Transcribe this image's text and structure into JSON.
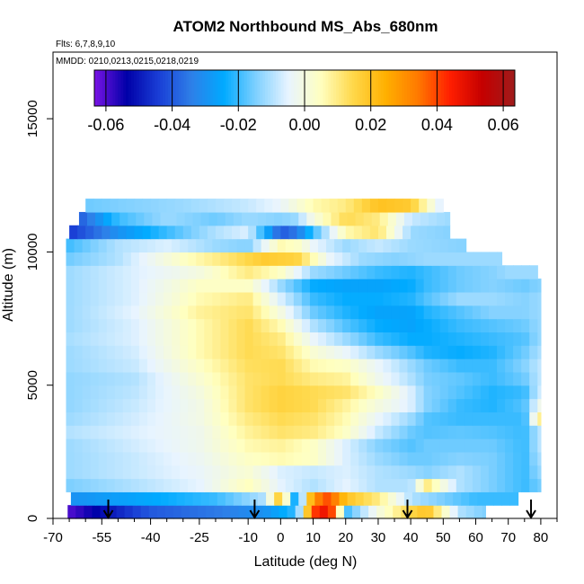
{
  "chart_data": {
    "type": "heatmap",
    "title": "ATOM2 Northbound MS_Abs_680nm",
    "flights_note": "Flts: 6,7,8,9,10",
    "dates_note": "MMDD: 0210,0213,0215,0218,0219",
    "xlabel": "Latitude (deg N)",
    "ylabel": "Altitude (m)",
    "xlim": [
      -70,
      85
    ],
    "ylim": [
      0,
      17500
    ],
    "x_ticks": [
      -70,
      -55,
      -40,
      -25,
      -10,
      0,
      10,
      20,
      30,
      40,
      50,
      60,
      70,
      80
    ],
    "x_tick_labels": [
      "-70",
      "-55",
      "-40",
      "-25",
      "-10",
      "0",
      "10",
      "20",
      "30",
      "40",
      "50",
      "60",
      "70",
      "80"
    ],
    "x_minor_ticks": [
      -65,
      -60,
      -50,
      -45,
      -35,
      -30,
      -20,
      -15,
      -5,
      5,
      15,
      25,
      35,
      45,
      55,
      65,
      75,
      85
    ],
    "y_ticks": [
      0,
      5000,
      10000,
      15000
    ],
    "y_tick_labels": [
      "0",
      "5000",
      "10000",
      "15000"
    ],
    "colorbar": {
      "range": [
        -0.0635,
        0.0635
      ],
      "ticks": [
        -0.06,
        -0.04,
        -0.02,
        0.0,
        0.02,
        0.04,
        0.06
      ],
      "tick_labels": [
        "-0.06",
        "-0.04",
        "-0.02",
        "0.00",
        "0.02",
        "0.04",
        "0.06"
      ],
      "colors": [
        "#7a14e6",
        "#0000a8",
        "#1a3fd6",
        "#2e7fe8",
        "#00aaff",
        "#7fd0ff",
        "#e8f4ff",
        "#ffffc0",
        "#ffd84a",
        "#ffb000",
        "#ff7a00",
        "#ff1e00",
        "#c40000",
        "#a01c1c"
      ]
    },
    "profile_markers_lat": [
      -53,
      -8,
      39,
      77
    ],
    "rows_altitude_m": [
      250,
      750,
      1250,
      1750,
      2250,
      2750,
      3250,
      3750,
      4250,
      4750,
      5250,
      5750,
      6250,
      6750,
      7250,
      7750,
      8250,
      8750,
      9250,
      9750,
      10250,
      10750,
      11250,
      11750
    ],
    "rows_lat_extent": [
      [
        -65.5,
        63
      ],
      [
        -64.5,
        73
      ],
      [
        -66,
        80
      ],
      [
        -66,
        80
      ],
      [
        -66,
        80
      ],
      [
        -66,
        80
      ],
      [
        -66,
        80
      ],
      [
        -66,
        80
      ],
      [
        -66,
        80
      ],
      [
        -66,
        80
      ],
      [
        -66,
        80
      ],
      [
        -66,
        80
      ],
      [
        -66,
        80
      ],
      [
        -66,
        80
      ],
      [
        -66,
        80
      ],
      [
        -66,
        80
      ],
      [
        -66,
        80
      ],
      [
        -66,
        80
      ],
      [
        -66,
        79
      ],
      [
        -66,
        68
      ],
      [
        -66,
        57
      ],
      [
        -65,
        52
      ],
      [
        -62,
        52
      ],
      [
        -60,
        50
      ]
    ],
    "rows_lat_nodes": [
      [
        -65,
        -40,
        -20,
        -5,
        5,
        10,
        15,
        20,
        30,
        40,
        45,
        55,
        63
      ],
      [
        -65,
        -40,
        -20,
        -5,
        0,
        5,
        10,
        15,
        20,
        30,
        40,
        50,
        60,
        73
      ],
      [
        -66,
        -45,
        -25,
        -10,
        0,
        10,
        20,
        30,
        40,
        45,
        55,
        65,
        75,
        80
      ],
      [
        -66,
        -45,
        -25,
        -10,
        0,
        10,
        20,
        30,
        40,
        45,
        55,
        65,
        75,
        80
      ],
      [
        -66,
        -45,
        -25,
        -10,
        0,
        10,
        20,
        30,
        40,
        45,
        55,
        65,
        75,
        80
      ],
      [
        -66,
        -45,
        -25,
        -10,
        0,
        10,
        20,
        30,
        40,
        45,
        55,
        65,
        75,
        80
      ],
      [
        -66,
        -45,
        -25,
        -10,
        0,
        10,
        20,
        30,
        40,
        45,
        55,
        65,
        75,
        80
      ],
      [
        -66,
        -45,
        -25,
        -10,
        0,
        10,
        20,
        30,
        40,
        45,
        55,
        65,
        75,
        80
      ],
      [
        -66,
        -45,
        -25,
        -10,
        0,
        10,
        20,
        30,
        40,
        45,
        55,
        65,
        75,
        80
      ],
      [
        -66,
        -45,
        -25,
        -10,
        0,
        10,
        20,
        30,
        40,
        45,
        55,
        65,
        75,
        80
      ],
      [
        -66,
        -45,
        -25,
        -10,
        0,
        10,
        20,
        30,
        40,
        45,
        55,
        65,
        75,
        80
      ],
      [
        -66,
        -45,
        -25,
        -10,
        0,
        10,
        20,
        30,
        40,
        45,
        55,
        65,
        75,
        80
      ],
      [
        -66,
        -45,
        -25,
        -10,
        0,
        10,
        20,
        30,
        40,
        45,
        55,
        65,
        75,
        80
      ],
      [
        -66,
        -45,
        -25,
        -10,
        0,
        10,
        20,
        30,
        40,
        45,
        55,
        65,
        75,
        80
      ],
      [
        -66,
        -45,
        -25,
        -10,
        0,
        10,
        20,
        30,
        40,
        45,
        55,
        65,
        75,
        80
      ],
      [
        -66,
        -45,
        -25,
        -10,
        0,
        10,
        20,
        30,
        40,
        45,
        55,
        65,
        75,
        80
      ],
      [
        -66,
        -45,
        -25,
        -10,
        0,
        10,
        20,
        30,
        40,
        45,
        55,
        65,
        75,
        80
      ],
      [
        -66,
        -45,
        -25,
        -10,
        0,
        10,
        20,
        30,
        40,
        45,
        55,
        65,
        75,
        80
      ],
      [
        -66,
        -45,
        -25,
        -10,
        0,
        10,
        20,
        30,
        40,
        45,
        55,
        65,
        70,
        79
      ],
      [
        -66,
        -50,
        -30,
        -15,
        -5,
        5,
        15,
        25,
        35,
        45,
        55,
        68
      ],
      [
        -66,
        -50,
        -35,
        -20,
        -10,
        0,
        5,
        10,
        20,
        30,
        40,
        57
      ],
      [
        -65,
        -50,
        -35,
        -20,
        -10,
        0,
        5,
        10,
        20,
        30,
        40,
        52
      ],
      [
        -62,
        -50,
        -35,
        -20,
        -10,
        0,
        5,
        10,
        20,
        30,
        40,
        52
      ],
      [
        -60,
        -45,
        -30,
        -20,
        -10,
        0,
        10,
        20,
        30,
        40,
        50
      ]
    ],
    "rows_values": [
      [
        -0.06,
        -0.04,
        -0.035,
        -0.03,
        -0.02,
        0.04,
        0.05,
        -0.02,
        0.0,
        0.015,
        0.02,
        -0.01,
        -0.015
      ],
      [
        -0.03,
        -0.025,
        -0.02,
        -0.01,
        0.02,
        -0.03,
        0.03,
        0.04,
        0.02,
        0.01,
        -0.01,
        -0.015,
        -0.02,
        -0.02
      ],
      [
        -0.015,
        -0.01,
        -0.005,
        0.005,
        -0.005,
        -0.01,
        -0.005,
        -0.01,
        -0.01,
        0.01,
        -0.01,
        -0.015,
        -0.02,
        -0.015
      ],
      [
        -0.012,
        -0.008,
        -0.004,
        0.002,
        -0.006,
        -0.008,
        -0.006,
        -0.01,
        -0.012,
        -0.014,
        -0.01,
        -0.015,
        -0.02,
        -0.012
      ],
      [
        -0.012,
        -0.008,
        -0.003,
        0.004,
        0.006,
        0.004,
        -0.006,
        -0.012,
        -0.016,
        -0.016,
        -0.014,
        -0.015,
        -0.02,
        -0.01
      ],
      [
        -0.012,
        -0.007,
        -0.002,
        0.006,
        0.008,
        0.004,
        -0.006,
        -0.014,
        -0.018,
        -0.016,
        -0.016,
        -0.016,
        -0.02,
        -0.008
      ],
      [
        -0.01,
        -0.006,
        -0.002,
        0.008,
        0.012,
        0.01,
        0.004,
        -0.008,
        -0.016,
        -0.018,
        -0.017,
        -0.018,
        -0.02,
        -0.008
      ],
      [
        -0.012,
        -0.007,
        -0.001,
        0.01,
        0.014,
        0.012,
        0.006,
        -0.004,
        -0.012,
        -0.018,
        -0.02,
        -0.02,
        -0.02,
        0.012
      ],
      [
        -0.013,
        -0.008,
        -0.001,
        0.012,
        0.016,
        0.014,
        0.008,
        0.0,
        -0.006,
        -0.014,
        -0.02,
        -0.022,
        -0.018,
        0.0
      ],
      [
        -0.013,
        -0.009,
        0.0,
        0.012,
        0.016,
        0.014,
        0.012,
        0.004,
        -0.006,
        -0.014,
        -0.018,
        -0.022,
        -0.02,
        -0.006
      ],
      [
        -0.013,
        -0.01,
        0.002,
        0.012,
        0.014,
        0.01,
        0.008,
        -0.002,
        -0.01,
        -0.015,
        -0.017,
        -0.02,
        -0.016,
        -0.008
      ],
      [
        -0.012,
        -0.008,
        0.004,
        0.013,
        0.014,
        0.006,
        0.004,
        -0.004,
        -0.012,
        -0.016,
        -0.02,
        -0.02,
        -0.014,
        -0.008
      ],
      [
        -0.012,
        -0.007,
        0.006,
        0.014,
        0.012,
        0.002,
        -0.004,
        -0.012,
        -0.018,
        -0.022,
        -0.024,
        -0.022,
        -0.016,
        -0.01
      ],
      [
        -0.011,
        -0.006,
        0.006,
        0.014,
        0.01,
        -0.004,
        -0.012,
        -0.02,
        -0.024,
        -0.024,
        -0.022,
        -0.02,
        -0.018,
        -0.012
      ],
      [
        -0.012,
        -0.006,
        0.006,
        0.014,
        0.006,
        -0.01,
        -0.018,
        -0.024,
        -0.026,
        -0.024,
        -0.02,
        -0.018,
        -0.016,
        -0.012
      ],
      [
        -0.012,
        -0.005,
        0.008,
        0.012,
        0.0,
        -0.016,
        -0.022,
        -0.026,
        -0.026,
        -0.022,
        -0.018,
        -0.014,
        -0.014,
        -0.012
      ],
      [
        -0.012,
        -0.006,
        0.006,
        0.01,
        -0.006,
        -0.02,
        -0.024,
        -0.024,
        -0.022,
        -0.018,
        -0.012,
        -0.012,
        -0.014,
        -0.012
      ],
      [
        -0.012,
        -0.006,
        0.004,
        0.004,
        -0.012,
        -0.024,
        -0.026,
        -0.026,
        -0.024,
        -0.02,
        -0.016,
        -0.014,
        -0.016,
        -0.014
      ],
      [
        -0.012,
        -0.006,
        0.0,
        0.01,
        0.004,
        -0.012,
        -0.016,
        -0.02,
        -0.022,
        -0.02,
        -0.016,
        -0.014,
        -0.012,
        -0.012
      ],
      [
        -0.016,
        -0.01,
        0.004,
        0.012,
        0.018,
        0.016,
        -0.004,
        -0.012,
        -0.014,
        -0.012,
        -0.012,
        -0.012
      ],
      [
        -0.02,
        -0.01,
        -0.006,
        -0.012,
        -0.014,
        0.006,
        0.004,
        -0.004,
        -0.012,
        -0.008,
        -0.012,
        -0.014
      ],
      [
        -0.045,
        -0.03,
        -0.02,
        -0.01,
        -0.006,
        -0.04,
        -0.035,
        -0.02,
        0.006,
        0.012,
        -0.012,
        -0.014
      ],
      [
        -0.04,
        -0.02,
        -0.012,
        -0.016,
        -0.012,
        -0.014,
        -0.012,
        0.0,
        0.014,
        0.01,
        -0.008,
        -0.012
      ],
      [
        -0.016,
        -0.014,
        -0.012,
        -0.01,
        -0.008,
        -0.004,
        0.006,
        0.01,
        0.02,
        0.018,
        -0.008
      ]
    ]
  }
}
